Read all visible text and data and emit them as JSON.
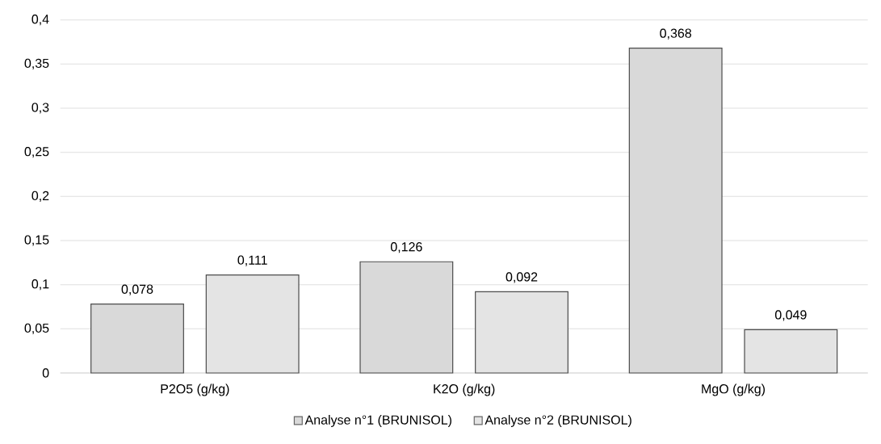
{
  "chart_data": {
    "type": "bar",
    "categories": [
      "P2O5 (g/kg)",
      "K2O (g/kg)",
      "MgO (g/kg)"
    ],
    "series": [
      {
        "name": "Analyse n°1 (BRUNISOL)",
        "color": "#d9d9d9",
        "values": [
          0.078,
          0.126,
          0.368
        ],
        "value_labels": [
          "0,078",
          "0,126",
          "0,368"
        ]
      },
      {
        "name": "Analyse n°2 (BRUNISOL)",
        "color": "#e4e4e4",
        "values": [
          0.111,
          0.092,
          0.049
        ],
        "value_labels": [
          "0,111",
          "0,092",
          "0,049"
        ]
      }
    ],
    "ylim": [
      0,
      0.4
    ],
    "yticks": [
      {
        "value": 0,
        "label": "0"
      },
      {
        "value": 0.05,
        "label": "0,05"
      },
      {
        "value": 0.1,
        "label": "0,1"
      },
      {
        "value": 0.15,
        "label": "0,15"
      },
      {
        "value": 0.2,
        "label": "0,2"
      },
      {
        "value": 0.25,
        "label": "0,25"
      },
      {
        "value": 0.3,
        "label": "0,3"
      },
      {
        "value": 0.35,
        "label": "0,35"
      },
      {
        "value": 0.4,
        "label": "0,4"
      }
    ],
    "grid": "y",
    "legend": "bottom"
  }
}
